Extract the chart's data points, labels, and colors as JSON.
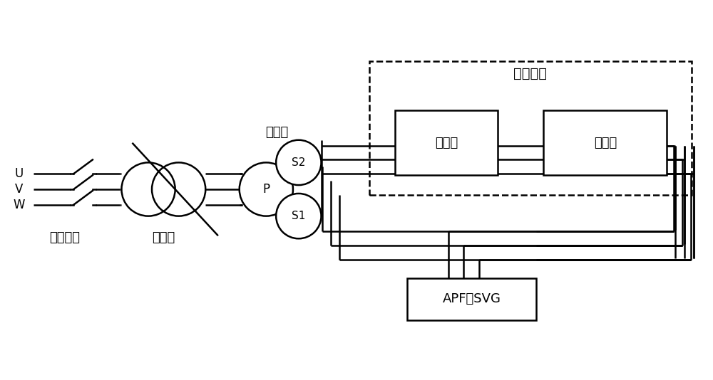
{
  "bg_color": "#ffffff",
  "line_color": "#000000",
  "font_size": 12,
  "font_size_label": 13,
  "font_size_module": 14,
  "label_uvw": [
    "U",
    "V",
    "W"
  ],
  "label_air_switch": "空气开关",
  "label_regulator": "调压器",
  "label_transformer": "变压器",
  "label_inverter": "逆变器",
  "label_rectifier": "整流器",
  "label_debug_module": "调试模块",
  "label_apf": "APF或SVG",
  "label_P": "P",
  "label_S1": "S1",
  "label_S2": "S2",
  "xlim": [
    0,
    10
  ],
  "ylim": [
    0,
    5.34
  ]
}
